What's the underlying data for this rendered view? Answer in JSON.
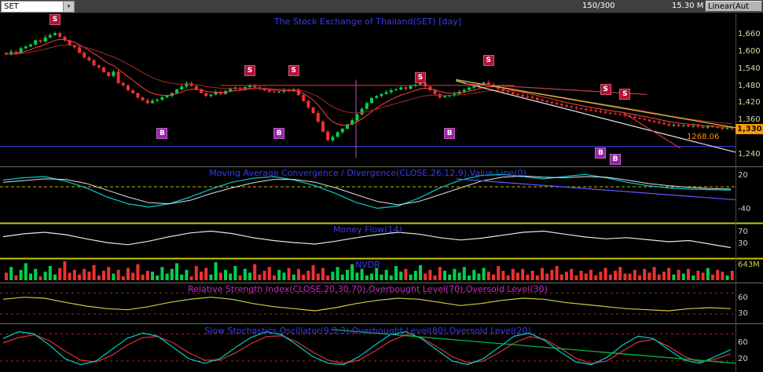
{
  "toolbar": {
    "symbol": "SET",
    "bar_info": "150/300",
    "volume": "15.30 M",
    "scale_button": "Linear(Aut"
  },
  "panels": {
    "main": {
      "title": "The Stock Exchange of Thailand(SET) [day]",
      "y_ticks": [
        "1,660",
        "1,600",
        "1,540",
        "1,480",
        "1,420",
        "1,360",
        "1,240"
      ],
      "last_price": "1,330.",
      "value_line_label": "1268.06"
    },
    "macd": {
      "title": "Moving Average Convergence / Divergence(CLOSE,26,12,9),Value Line(0)",
      "ticks": [
        "20",
        "-40"
      ]
    },
    "money_flow": {
      "title": "Money Flow(14)",
      "ticks": [
        "70",
        "30"
      ]
    },
    "nvdr": {
      "title": "NVDR",
      "ticks": [
        "643M"
      ]
    },
    "rsi": {
      "title": "Relative Strength Index(CLOSE,20,30,70),Overbought Level(70),Oversold Level(30)",
      "ticks": [
        "60",
        "30"
      ]
    },
    "stoch": {
      "title": "Slow Stochastics Oscillator(9,3,3),Overbought Level(80),Oversold Level(20)",
      "ticks": [
        "60",
        "20"
      ]
    }
  },
  "signal_labels": {
    "sell": "S",
    "buy": "B"
  },
  "colors": {
    "up": "#00d24b",
    "down": "#f03030",
    "title_blue": "#3a3aee",
    "title_magenta": "#c32cc3",
    "accent_orange": "#ff9b00",
    "value_line_blue": "#3b3bdd",
    "sell_bg": "#b31238",
    "buy_bg": "#9c21a8"
  },
  "chart_data": {
    "type": "candlestick+indicators",
    "symbol": "SET",
    "price_axis": [
      1660,
      1600,
      1540,
      1480,
      1420,
      1360,
      1240
    ],
    "value_line": 1268.06,
    "last_price": 1330,
    "closes": [
      1590,
      1600,
      1595,
      1612,
      1618,
      1625,
      1640,
      1635,
      1650,
      1658,
      1665,
      1652,
      1640,
      1622,
      1615,
      1596,
      1580,
      1570,
      1552,
      1545,
      1528,
      1515,
      1530,
      1490,
      1482,
      1465,
      1455,
      1440,
      1430,
      1420,
      1428,
      1432,
      1440,
      1445,
      1455,
      1468,
      1478,
      1490,
      1480,
      1468,
      1455,
      1445,
      1450,
      1458,
      1452,
      1462,
      1470,
      1474,
      1468,
      1476,
      1480,
      1475,
      1470,
      1465,
      1460,
      1458,
      1460,
      1464,
      1462,
      1468,
      1448,
      1428,
      1405,
      1385,
      1355,
      1320,
      1290,
      1302,
      1318,
      1330,
      1345,
      1360,
      1380,
      1400,
      1420,
      1438,
      1445,
      1452,
      1458,
      1465,
      1468,
      1475,
      1470,
      1480,
      1485,
      1490,
      1478,
      1465,
      1452,
      1440,
      1444,
      1448,
      1452,
      1460,
      1466,
      1474,
      1480,
      1486,
      1492,
      1485,
      1478,
      1470,
      1462,
      1458,
      1452,
      1448,
      1444,
      1442,
      1438,
      1432,
      1428,
      1424,
      1420,
      1416,
      1412,
      1408,
      1405,
      1402,
      1400,
      1396,
      1394,
      1392,
      1390,
      1386,
      1384,
      1382,
      1380,
      1376,
      1372,
      1368,
      1365,
      1362,
      1358,
      1354,
      1350,
      1346,
      1342,
      1344,
      1340,
      1342,
      1338,
      1340,
      1338,
      1334,
      1338,
      1336,
      1334,
      1330,
      1332,
      1330
    ],
    "signals": {
      "sell": [
        {
          "i": 10,
          "p": 1712
        },
        {
          "i": 50,
          "p": 1535
        },
        {
          "i": 59,
          "p": 1535
        },
        {
          "i": 85,
          "p": 1508
        },
        {
          "i": 99,
          "p": 1570
        },
        {
          "i": 123,
          "p": 1468
        },
        {
          "i": 127,
          "p": 1452
        }
      ],
      "buy": [
        {
          "i": 32,
          "p": 1315
        },
        {
          "i": 56,
          "p": 1315
        },
        {
          "i": 91,
          "p": 1315
        },
        {
          "i": 122,
          "p": 1245
        },
        {
          "i": 125,
          "p": 1222
        }
      ]
    },
    "trendlines": [
      {
        "color": "#cfcf3f",
        "x1": 0.62,
        "p1": 1502,
        "x2": 1.0,
        "p2": 1334
      },
      {
        "color": "#e8e8e8",
        "x1": 0.62,
        "p1": 1498,
        "x2": 1.0,
        "p2": 1248
      },
      {
        "color": "#e03030",
        "x1": 0.3,
        "p1": 1482,
        "x2": 0.7,
        "p2": 1482
      },
      {
        "color": "#c04040",
        "x1": 0.63,
        "p1": 1488,
        "x2": 0.88,
        "p2": 1450
      },
      {
        "color": "#e03030",
        "x1": 0.845,
        "p1": 1390,
        "x2": 0.925,
        "p2": 1262
      }
    ],
    "vline": {
      "x": 0.484,
      "p1": 1502,
      "p2": 1228
    },
    "macd": {
      "macd": [
        12,
        16,
        18,
        10,
        -2,
        -18,
        -30,
        -36,
        -30,
        -18,
        -4,
        8,
        15,
        18,
        12,
        2,
        -12,
        -28,
        -38,
        -34,
        -20,
        -2,
        12,
        20,
        22,
        18,
        14,
        18,
        22,
        16,
        8,
        2,
        -2,
        -4,
        -5,
        -6
      ],
      "signal": [
        8,
        11,
        14,
        13,
        6,
        -6,
        -18,
        -28,
        -30,
        -24,
        -12,
        -2,
        7,
        13,
        13,
        8,
        -2,
        -14,
        -26,
        -32,
        -26,
        -14,
        -2,
        10,
        17,
        19,
        17,
        16,
        18,
        17,
        12,
        6,
        2,
        -1,
        -3,
        -4
      ],
      "zero_level": 0,
      "trendline": {
        "x1": 0.62,
        "v1": 14,
        "x2": 1.0,
        "v2": -23
      }
    },
    "money_flow": [
      55,
      65,
      70,
      62,
      48,
      35,
      28,
      40,
      55,
      68,
      74,
      66,
      52,
      42,
      35,
      30,
      40,
      52,
      62,
      70,
      64,
      52,
      44,
      50,
      60,
      70,
      74,
      64,
      54,
      48,
      52,
      45,
      38,
      42,
      30,
      18
    ],
    "nvdr_bars": [
      40,
      70,
      25,
      55,
      90,
      35,
      60,
      20,
      45,
      75,
      30,
      65,
      100,
      40,
      55,
      30,
      60,
      45,
      80,
      25,
      50,
      70,
      35,
      55,
      20,
      65,
      40,
      85,
      30,
      50,
      45,
      25,
      70,
      35,
      60,
      90,
      30,
      55,
      20,
      75,
      45,
      65,
      30,
      95,
      40,
      55,
      35,
      75,
      25,
      60,
      40,
      85,
      30,
      50,
      70,
      25,
      55,
      40,
      65,
      30,
      60,
      30,
      50,
      80,
      35,
      65,
      25,
      45,
      70,
      30,
      55,
      85,
      40,
      60,
      25,
      35,
      65,
      30,
      55,
      25,
      75,
      45,
      60,
      30,
      50,
      80,
      35,
      55,
      25,
      70,
      50,
      30,
      60,
      40,
      70,
      25,
      55,
      35,
      65,
      45,
      30,
      75,
      50,
      25,
      60,
      40,
      60,
      30,
      50,
      25,
      65,
      35,
      55,
      75,
      30,
      45,
      60,
      25,
      50,
      35,
      55,
      25,
      45,
      65,
      30,
      50,
      70,
      35,
      35,
      55,
      25,
      60,
      40,
      70,
      30,
      45,
      65,
      30,
      55,
      35,
      60,
      25,
      50,
      40,
      65,
      30,
      55,
      45,
      25,
      50
    ],
    "rsi": {
      "values": [
        58,
        62,
        60,
        52,
        45,
        40,
        38,
        44,
        52,
        58,
        62,
        58,
        50,
        44,
        40,
        36,
        42,
        50,
        56,
        60,
        58,
        52,
        46,
        50,
        56,
        60,
        58,
        52,
        48,
        44,
        40,
        38,
        36,
        40,
        42,
        40
      ],
      "overbought": 70,
      "oversold": 30
    },
    "stoch": {
      "k": [
        70,
        85,
        80,
        55,
        25,
        12,
        20,
        45,
        70,
        82,
        75,
        50,
        25,
        15,
        25,
        50,
        72,
        85,
        78,
        55,
        30,
        15,
        12,
        30,
        55,
        78,
        85,
        70,
        45,
        20,
        12,
        25,
        50,
        75,
        82,
        65,
        40,
        18,
        12,
        28,
        55,
        75,
        70,
        45,
        22,
        15,
        30,
        45
      ],
      "d": [
        60,
        72,
        78,
        65,
        42,
        22,
        18,
        32,
        55,
        72,
        74,
        60,
        38,
        22,
        22,
        38,
        58,
        74,
        76,
        62,
        40,
        22,
        15,
        22,
        42,
        64,
        78,
        72,
        52,
        30,
        16,
        20,
        38,
        60,
        74,
        68,
        48,
        26,
        14,
        20,
        42,
        62,
        68,
        52,
        30,
        18,
        24,
        36
      ],
      "overbought": 80,
      "oversold": 20,
      "trendline": {
        "x1": 0.45,
        "v1": 90,
        "x2": 1.0,
        "v2": 15
      }
    }
  }
}
